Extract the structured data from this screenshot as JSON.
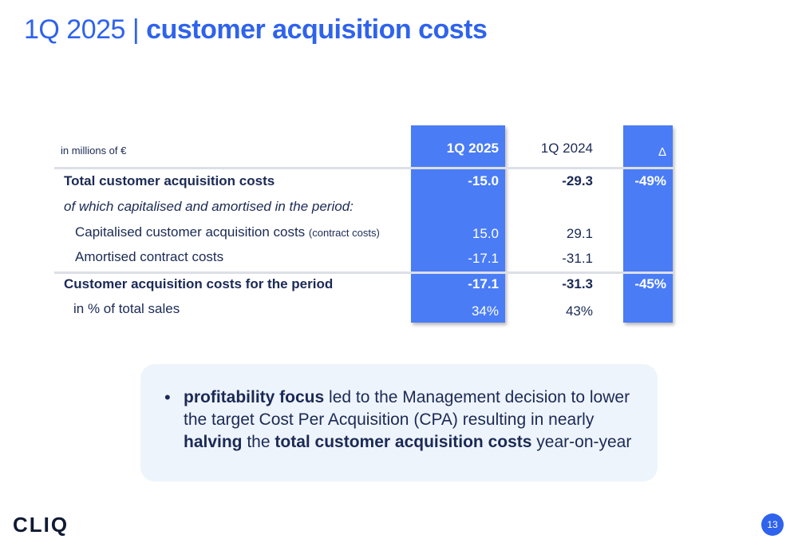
{
  "title": {
    "prefix": "1Q 2025 | ",
    "main": "customer acquisition costs"
  },
  "table": {
    "unit_label": "in millions of €",
    "headers": {
      "col1": "1Q 2025",
      "col2": "1Q 2024",
      "col3": "Δ"
    },
    "rows": [
      {
        "label": "Total customer acquisition costs",
        "col1": "-15.0",
        "col2": "-29.3",
        "col3": "-49%"
      },
      {
        "label": "of which capitalised and amortised in the period:",
        "col1": "",
        "col2": "",
        "col3": ""
      },
      {
        "label": "Capitalised customer acquisition costs",
        "label_suffix": "(contract costs)",
        "col1": "15.0",
        "col2": "29.1",
        "col3": ""
      },
      {
        "label": "Amortised contract costs",
        "col1": "-17.1",
        "col2": "-31.1",
        "col3": ""
      },
      {
        "label": "Customer acquisition costs for the period",
        "col1": "-17.1",
        "col2": "-31.3",
        "col3": "-45%"
      },
      {
        "label": "in % of total sales",
        "col1": "34%",
        "col2": "43%",
        "col3": ""
      }
    ],
    "highlight_color": "#4a7cf6"
  },
  "callout": {
    "bullet": "•",
    "parts": [
      "profitability focus",
      " led to the Management decision to lower the target Cost Per Acquisition (CPA) resulting in nearly ",
      "halving",
      " the ",
      "total customer acquisition costs",
      " year-on-year"
    ]
  },
  "footer": {
    "logo": "CLIQ",
    "page_number": "13"
  },
  "colors": {
    "accent": "#2f63ec",
    "text": "#1b2a55"
  }
}
